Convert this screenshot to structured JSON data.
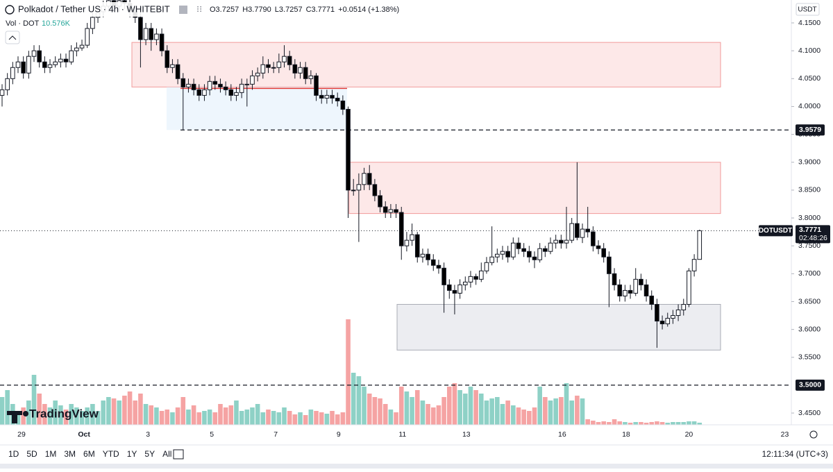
{
  "chart_data": {
    "type": "candlestick",
    "title": "Polkadot / Tether US · 4h · WHITEBIT",
    "ohlc_header": [
      "O3.7257",
      "H3.7790",
      "L3.7257",
      "C3.7771",
      "+0.0514 (+1.38%)"
    ],
    "volume_title": "Vol · DOT",
    "volume_last": {
      "value": 10576,
      "label": "10.576K"
    },
    "currency": "USDT",
    "logo": "TradingView",
    "up_color": "#ffffff",
    "down_color": "#000000",
    "volume_up_color": "#8ed1c6",
    "volume_down_color": "#f5a3a3",
    "grid": false,
    "xlim": [
      -0.39,
      148.24
    ],
    "ylim": [
      3.4289,
      4.1911
    ],
    "yticks": [
      {
        "value": 4.15,
        "label": "4.1500"
      },
      {
        "value": 4.1,
        "label": "4.1000"
      },
      {
        "value": 4.05,
        "label": "4.0500"
      },
      {
        "value": 4.0,
        "label": "4.0000"
      },
      {
        "value": 3.95,
        "label": "3.9500"
      },
      {
        "value": 3.9,
        "label": "3.9000"
      },
      {
        "value": 3.85,
        "label": "3.8500"
      },
      {
        "value": 3.8,
        "label": "3.8000"
      },
      {
        "value": 3.75,
        "label": "3.7500"
      },
      {
        "value": 3.7,
        "label": "3.7000"
      },
      {
        "value": 3.65,
        "label": "3.6500"
      },
      {
        "value": 3.6,
        "label": "3.6000"
      },
      {
        "value": 3.55,
        "label": "3.5500"
      },
      {
        "value": 3.45,
        "label": "3.4500"
      }
    ],
    "xticks": [
      {
        "value": 3.65,
        "label": "29"
      },
      {
        "value": 15.4,
        "label": "Oct"
      },
      {
        "value": 27.4,
        "label": "3"
      },
      {
        "value": 39.4,
        "label": "5"
      },
      {
        "value": 51.4,
        "label": "7"
      },
      {
        "value": 63.2,
        "label": "9"
      },
      {
        "value": 75.2,
        "label": "11"
      },
      {
        "value": 87.2,
        "label": "13"
      },
      {
        "value": 105.2,
        "label": "16"
      },
      {
        "value": 117.2,
        "label": "18"
      },
      {
        "value": 129,
        "label": "20"
      },
      {
        "value": 147,
        "label": "23"
      }
    ],
    "zones": [
      {
        "top": 4.115,
        "bottom": 4.035,
        "color": "#fde4e4"
      },
      {
        "top": 3.9,
        "bottom": 3.808,
        "color": "#fde4e4"
      },
      {
        "top": 3.645,
        "bottom": 3.563,
        "color": "#e9eaee"
      }
    ],
    "levels": [
      {
        "value": 3.9579,
        "label": "3.9579"
      },
      {
        "value": 3.5,
        "label": "3.5000"
      }
    ],
    "last_price": {
      "value": 3.7771,
      "label": "3.7771"
    },
    "symbol_tag": "DOTUSDT",
    "countdown": "02:48:26",
    "ranges": [
      "1D",
      "5D",
      "1M",
      "3M",
      "6M",
      "YTD",
      "1Y",
      "5Y",
      "All"
    ],
    "clock": "12:11:34 (UTC+3)",
    "open": [
      4.02,
      4.03,
      4.05,
      4.07,
      4.08,
      4.06,
      4.09,
      4.1,
      4.08,
      4.07,
      4.075,
      4.08,
      4.085,
      4.08,
      4.1,
      4.105,
      4.11,
      4.14,
      4.16,
      4.17,
      4.18,
      4.19,
      4.18,
      4.19,
      4.185,
      4.17,
      4.16,
      4.12,
      4.14,
      4.12,
      4.13,
      4.1,
      4.07,
      4.075,
      4.05,
      4.035,
      4.04,
      4.03,
      4.02,
      4.03,
      4.045,
      4.04,
      4.035,
      4.03,
      4.02,
      4.025,
      4.04,
      4.04,
      4.055,
      4.06,
      4.075,
      4.07,
      4.07,
      4.08,
      4.09,
      4.075,
      4.06,
      4.07,
      4.05,
      4.055,
      4.02,
      4.015,
      4.02,
      4.015,
      4.01,
      3.995,
      3.85,
      3.85,
      3.86,
      3.88,
      3.86,
      3.84,
      3.82,
      3.81,
      3.815,
      3.81,
      3.75,
      3.76,
      3.77,
      3.73,
      3.735,
      3.725,
      3.715,
      3.71,
      3.68,
      3.67,
      3.665,
      3.68,
      3.685,
      3.695,
      3.69,
      3.705,
      3.72,
      3.73,
      3.735,
      3.74,
      3.73,
      3.755,
      3.745,
      3.74,
      3.73,
      3.725,
      3.745,
      3.74,
      3.755,
      3.76,
      3.755,
      3.76,
      3.79,
      3.765,
      3.78,
      3.775,
      3.75,
      3.745,
      3.73,
      3.7,
      3.68,
      3.66,
      3.67,
      3.665,
      3.69,
      3.68,
      3.66,
      3.645,
      3.615,
      3.61,
      3.62,
      3.625,
      3.635,
      3.645,
      3.705,
      3.7257
    ],
    "high": [
      4.04,
      4.06,
      4.08,
      4.09,
      4.09,
      4.1,
      4.11,
      4.11,
      4.09,
      4.085,
      4.09,
      4.095,
      4.095,
      4.11,
      4.115,
      4.12,
      4.15,
      4.17,
      4.18,
      4.19,
      4.2,
      4.2,
      4.2,
      4.2,
      4.195,
      4.18,
      4.17,
      4.15,
      4.15,
      4.14,
      4.14,
      4.11,
      4.085,
      4.085,
      4.06,
      4.05,
      4.05,
      4.04,
      4.04,
      4.055,
      4.055,
      4.05,
      4.045,
      4.04,
      4.035,
      4.05,
      4.05,
      4.065,
      4.07,
      4.09,
      4.085,
      4.08,
      4.095,
      4.11,
      4.1,
      4.085,
      4.08,
      4.08,
      4.065,
      4.06,
      4.03,
      4.03,
      4.03,
      4.025,
      4.02,
      4.0,
      3.87,
      3.88,
      3.89,
      3.895,
      3.87,
      3.85,
      3.83,
      3.825,
      3.825,
      3.82,
      3.775,
      3.79,
      3.775,
      3.745,
      3.745,
      3.735,
      3.725,
      3.72,
      3.69,
      3.68,
      3.69,
      3.695,
      3.705,
      3.7,
      3.72,
      3.73,
      3.785,
      3.745,
      3.75,
      3.75,
      3.765,
      3.765,
      3.755,
      3.75,
      3.74,
      3.755,
      3.75,
      3.765,
      3.77,
      3.77,
      3.82,
      3.8,
      3.9,
      3.79,
      3.82,
      3.785,
      3.76,
      3.755,
      3.74,
      3.71,
      3.69,
      3.68,
      3.68,
      3.71,
      3.7,
      3.69,
      3.67,
      3.655,
      3.625,
      3.63,
      3.635,
      3.645,
      3.655,
      3.71,
      3.735,
      3.779
    ],
    "low": [
      4.0,
      4.02,
      4.04,
      4.06,
      4.05,
      4.05,
      4.08,
      4.07,
      4.06,
      4.06,
      4.07,
      4.07,
      4.07,
      4.075,
      4.09,
      4.1,
      4.105,
      4.13,
      4.15,
      4.16,
      4.17,
      4.17,
      4.17,
      4.175,
      4.16,
      4.15,
      4.07,
      4.11,
      4.1,
      4.11,
      4.09,
      4.06,
      4.06,
      4.04,
      3.958,
      4.025,
      4.02,
      4.01,
      4.01,
      4.02,
      4.03,
      4.025,
      4.02,
      4.01,
      4.01,
      4.015,
      4.0,
      4.03,
      4.045,
      4.05,
      4.06,
      4.06,
      4.06,
      4.07,
      4.065,
      4.05,
      4.05,
      4.04,
      4.04,
      4.01,
      4.005,
      4.005,
      4.005,
      4.0,
      3.985,
      3.8,
      3.84,
      3.757,
      3.85,
      3.85,
      3.83,
      3.81,
      3.8,
      3.8,
      3.8,
      3.725,
      3.74,
      3.75,
      3.72,
      3.72,
      3.715,
      3.705,
      3.7,
      3.63,
      3.655,
      3.627,
      3.655,
      3.67,
      3.675,
      3.68,
      3.685,
      3.7,
      3.715,
      3.72,
      3.725,
      3.72,
      3.725,
      3.735,
      3.73,
      3.72,
      3.71,
      3.72,
      3.73,
      3.735,
      3.745,
      3.745,
      3.745,
      3.755,
      3.76,
      3.755,
      3.765,
      3.74,
      3.735,
      3.72,
      3.64,
      3.67,
      3.65,
      3.65,
      3.655,
      3.66,
      3.67,
      3.65,
      3.635,
      3.567,
      3.6,
      3.605,
      3.61,
      3.615,
      3.625,
      3.64,
      3.695,
      3.7257
    ],
    "close": [
      4.03,
      4.05,
      4.07,
      4.08,
      4.06,
      4.09,
      4.1,
      4.08,
      4.07,
      4.075,
      4.08,
      4.085,
      4.08,
      4.1,
      4.105,
      4.11,
      4.14,
      4.16,
      4.17,
      4.18,
      4.19,
      4.18,
      4.19,
      4.185,
      4.17,
      4.16,
      4.12,
      4.14,
      4.12,
      4.13,
      4.1,
      4.07,
      4.075,
      4.05,
      4.035,
      4.04,
      4.03,
      4.02,
      4.03,
      4.045,
      4.04,
      4.035,
      4.03,
      4.02,
      4.025,
      4.04,
      4.04,
      4.055,
      4.06,
      4.075,
      4.07,
      4.07,
      4.08,
      4.09,
      4.075,
      4.06,
      4.07,
      4.05,
      4.055,
      4.02,
      4.015,
      4.02,
      4.015,
      4.01,
      3.995,
      3.85,
      3.85,
      3.86,
      3.88,
      3.86,
      3.84,
      3.82,
      3.81,
      3.815,
      3.81,
      3.75,
      3.76,
      3.77,
      3.73,
      3.735,
      3.725,
      3.715,
      3.71,
      3.68,
      3.67,
      3.665,
      3.68,
      3.685,
      3.695,
      3.69,
      3.705,
      3.72,
      3.73,
      3.735,
      3.74,
      3.73,
      3.755,
      3.745,
      3.74,
      3.73,
      3.725,
      3.745,
      3.74,
      3.755,
      3.76,
      3.755,
      3.76,
      3.79,
      3.765,
      3.78,
      3.775,
      3.75,
      3.745,
      3.73,
      3.7,
      3.68,
      3.66,
      3.67,
      3.665,
      3.69,
      3.68,
      3.66,
      3.645,
      3.615,
      3.61,
      3.62,
      3.625,
      3.635,
      3.645,
      3.705,
      3.7257,
      3.7771
    ],
    "volume": [
      140000,
      175000,
      105000,
      70000,
      87500,
      122500,
      252000,
      157500,
      105000,
      87500,
      122500,
      98000,
      77000,
      105000,
      87500,
      70000,
      87500,
      105000,
      70000,
      122500,
      140000,
      133000,
      122500,
      147000,
      168000,
      122500,
      157500,
      105000,
      98000,
      87500,
      70000,
      77000,
      63000,
      87500,
      140000,
      77000,
      98000,
      63000,
      70000,
      77000,
      63000,
      105000,
      87500,
      98000,
      122500,
      70000,
      77000,
      87500,
      105000,
      63000,
      77000,
      70000,
      63000,
      87500,
      70000,
      52500,
      63000,
      49000,
      77000,
      70000,
      63000,
      56000,
      70000,
      52500,
      63000,
      532000,
      262500,
      245000,
      192500,
      157500,
      140000,
      133000,
      105000,
      77000,
      63000,
      192500,
      168000,
      140000,
      175000,
      122500,
      105000,
      87500,
      98000,
      140000,
      192500,
      210000,
      175000,
      157500,
      192500,
      175000,
      157500,
      122500,
      133000,
      140000,
      105000,
      122500,
      98000,
      87500,
      77000,
      70000,
      87500,
      192500,
      140000,
      122500,
      133000,
      140000,
      210000,
      122500,
      147000,
      133000,
      28000,
      21000,
      14000,
      17500,
      14000,
      28000,
      17500,
      14000,
      10500,
      14000,
      14000,
      10500,
      14000,
      17500,
      14000,
      10500,
      14000,
      14000,
      14000,
      17500,
      17500,
      10576
    ]
  }
}
